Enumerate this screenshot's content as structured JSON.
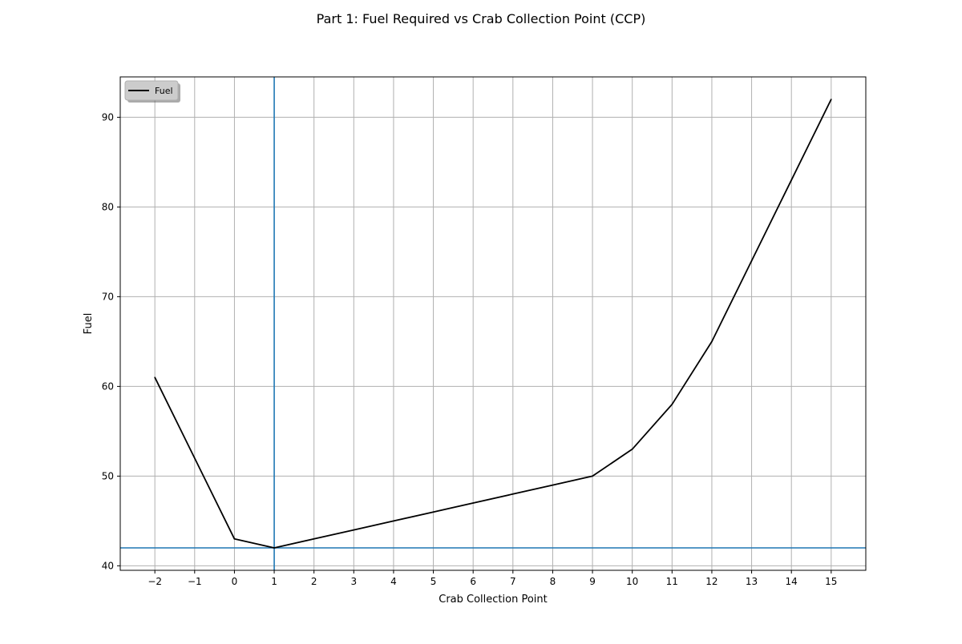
{
  "chart_data": {
    "type": "line",
    "title": "Part 1:  Fuel Required vs Crab Collection Point (CCP)",
    "xlabel": "Crab Collection Point",
    "ylabel": "Fuel",
    "xlim": [
      -2.87,
      15.87
    ],
    "ylim": [
      39.5,
      94.5
    ],
    "x_ticks": [
      -2,
      -1,
      0,
      1,
      2,
      3,
      4,
      5,
      6,
      7,
      8,
      9,
      10,
      11,
      12,
      13,
      14,
      15
    ],
    "x_tick_labels": [
      "−2",
      "−1",
      "0",
      "1",
      "2",
      "3",
      "4",
      "5",
      "6",
      "7",
      "8",
      "9",
      "10",
      "11",
      "12",
      "13",
      "14",
      "15"
    ],
    "y_ticks": [
      40,
      50,
      60,
      70,
      80,
      90
    ],
    "y_tick_labels": [
      "40",
      "50",
      "60",
      "70",
      "80",
      "90"
    ],
    "grid": true,
    "legend": {
      "placement": "top-left",
      "entries": [
        "Fuel"
      ]
    },
    "series": [
      {
        "name": "Fuel",
        "color": "#000000",
        "x": [
          -2,
          0,
          1,
          2,
          3,
          4,
          5,
          6,
          7,
          8,
          9,
          10,
          11,
          12,
          13,
          14,
          15
        ],
        "values": [
          61,
          43,
          42,
          43,
          44,
          45,
          46,
          47,
          48,
          49,
          50,
          53,
          58,
          65,
          74,
          83,
          92
        ]
      }
    ],
    "reference_lines": {
      "vertical_x": 1,
      "horizontal_y": 42,
      "color": "#1f77b4"
    }
  }
}
